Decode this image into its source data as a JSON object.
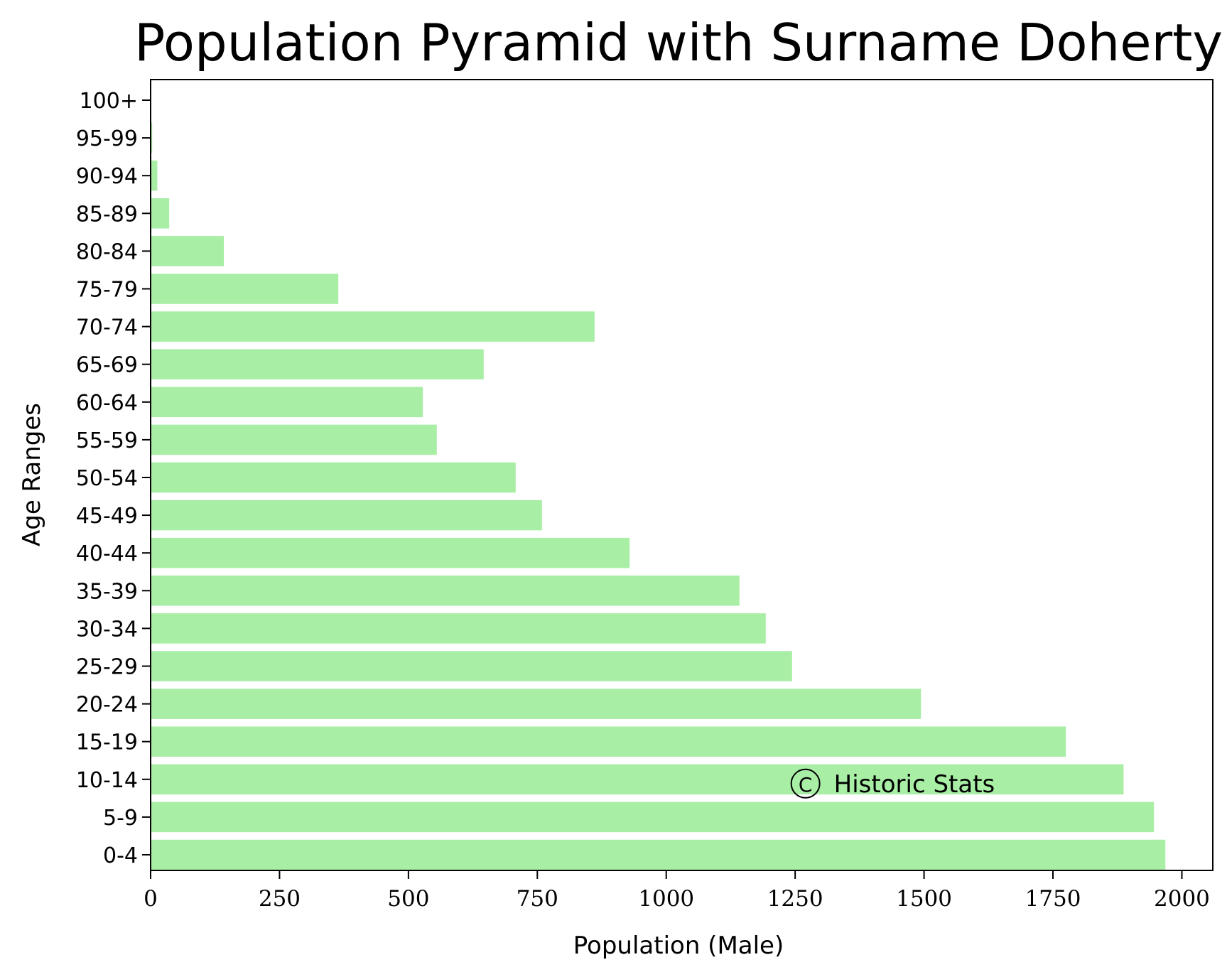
{
  "chart_data": {
    "type": "bar",
    "orientation": "horizontal",
    "title": "Population Pyramid with Surname Doherty",
    "xlabel": "Population (Male)",
    "ylabel": "Age Ranges",
    "categories": [
      "0-4",
      "5-9",
      "10-14",
      "15-19",
      "20-24",
      "25-29",
      "30-34",
      "35-39",
      "40-44",
      "45-49",
      "50-54",
      "55-59",
      "60-64",
      "65-69",
      "70-74",
      "75-79",
      "80-84",
      "85-89",
      "90-94",
      "95-99",
      "100+"
    ],
    "values": [
      1968,
      1946,
      1887,
      1775,
      1494,
      1244,
      1193,
      1142,
      929,
      759,
      708,
      555,
      528,
      646,
      861,
      364,
      142,
      36,
      13,
      3,
      0
    ],
    "xlim": [
      0,
      2060
    ],
    "xticks": [
      0,
      250,
      500,
      750,
      1000,
      1250,
      1500,
      1750,
      2000
    ],
    "bar_color": "#a8eea5",
    "grid": false,
    "annotation": {
      "symbol": "C",
      "text": "Historic Stats",
      "x": 1270,
      "category": "10-14"
    }
  }
}
